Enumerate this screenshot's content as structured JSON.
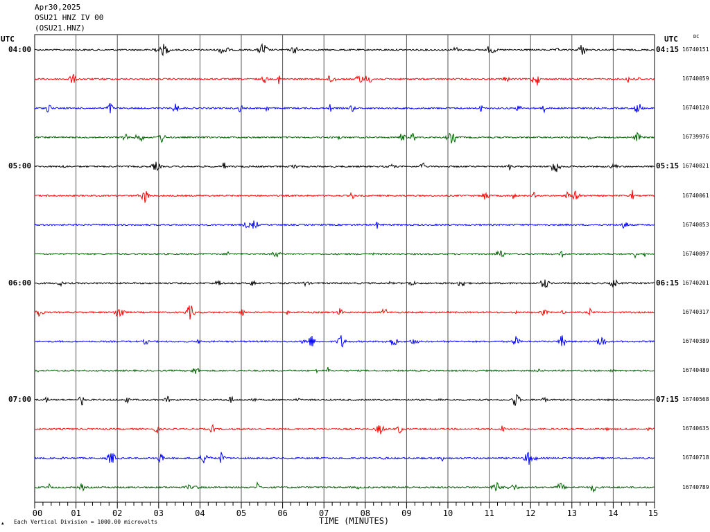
{
  "header": {
    "date": "Apr30,2025",
    "station": "OSU21 HNZ IV 00",
    "channel": "(OSU21.HNZ)"
  },
  "utc_label": "UTC",
  "dc_label": "DC",
  "xlabel": "TIME (MINUTES)",
  "footnote": "Each Vertical Division = 1000.00 microvolts",
  "chart_data": {
    "type": "line",
    "xlim": [
      0,
      15
    ],
    "x_ticks": [
      "00",
      "01",
      "02",
      "03",
      "04",
      "05",
      "06",
      "07",
      "08",
      "09",
      "10",
      "11",
      "12",
      "13",
      "14",
      "15"
    ],
    "minutes_per_trace": 15,
    "trace_colors": [
      "#000000",
      "#ff0000",
      "#0000ff",
      "#006400"
    ],
    "traces": [
      {
        "start": "04:00",
        "end": "04:15",
        "count": "16740151"
      },
      {
        "count": "16740059"
      },
      {
        "count": "16740120"
      },
      {
        "count": "16739976"
      },
      {
        "start": "05:00",
        "end": "05:15",
        "count": "16740021"
      },
      {
        "count": "16740061"
      },
      {
        "count": "16740053"
      },
      {
        "count": "16740097"
      },
      {
        "start": "06:00",
        "end": "06:15",
        "count": "16740201"
      },
      {
        "count": "16740317"
      },
      {
        "count": "16740389"
      },
      {
        "count": "16740480"
      },
      {
        "start": "07:00",
        "end": "07:15",
        "count": "16740568"
      },
      {
        "count": "16740635"
      },
      {
        "count": "16740718"
      },
      {
        "count": "16740789"
      }
    ]
  }
}
